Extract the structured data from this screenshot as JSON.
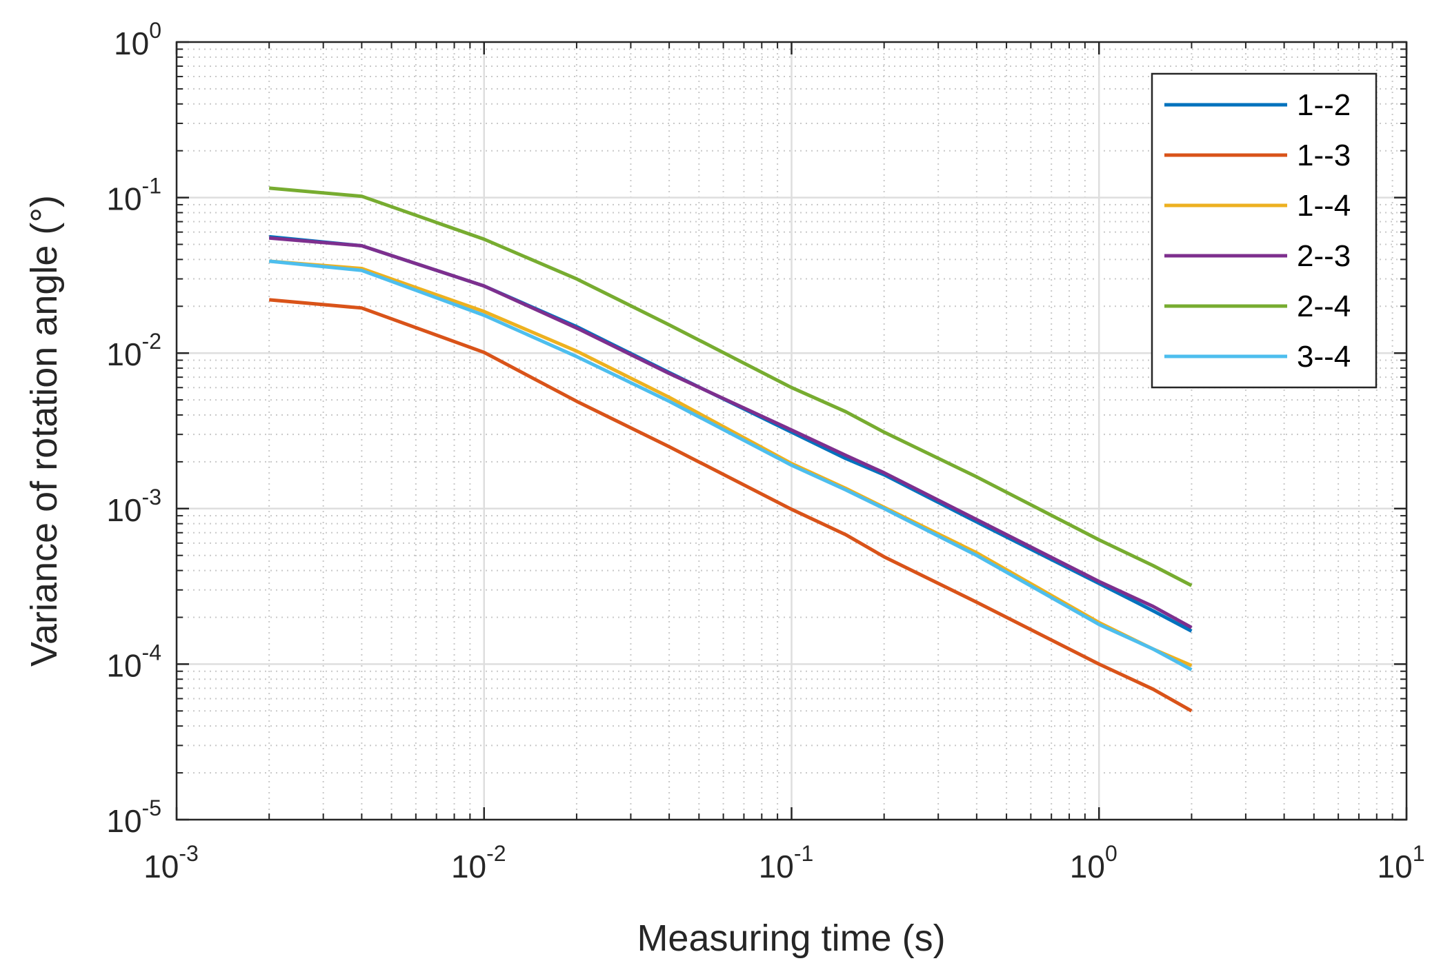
{
  "chart_data": {
    "type": "line",
    "title": "",
    "xlabel": "Measuring time (s)",
    "ylabel": "Variance of rotation angle (°)",
    "xscale": "log",
    "yscale": "log",
    "xlim": [
      0.001,
      10
    ],
    "ylim": [
      1e-05,
      1
    ],
    "grid": true,
    "minor_grid": true,
    "legend_position": "top-right",
    "x_ticks": [
      {
        "value": 0.001,
        "base": "10",
        "exp": "-3"
      },
      {
        "value": 0.01,
        "base": "10",
        "exp": "-2"
      },
      {
        "value": 0.1,
        "base": "10",
        "exp": "-1"
      },
      {
        "value": 1,
        "base": "10",
        "exp": "0"
      },
      {
        "value": 10,
        "base": "10",
        "exp": "1"
      }
    ],
    "y_ticks": [
      {
        "value": 1e-05,
        "base": "10",
        "exp": "-5"
      },
      {
        "value": 0.0001,
        "base": "10",
        "exp": "-4"
      },
      {
        "value": 0.001,
        "base": "10",
        "exp": "-3"
      },
      {
        "value": 0.01,
        "base": "10",
        "exp": "-2"
      },
      {
        "value": 0.1,
        "base": "10",
        "exp": "-1"
      },
      {
        "value": 1,
        "base": "10",
        "exp": "0"
      }
    ],
    "x": [
      0.002,
      0.004,
      0.01,
      0.02,
      0.04,
      0.1,
      0.15,
      0.2,
      0.4,
      1,
      1.5,
      2
    ],
    "series": [
      {
        "name": "1--2",
        "color": "#0072BD",
        "values": [
          0.056,
          0.049,
          0.027,
          0.0148,
          0.0075,
          0.0031,
          0.0021,
          0.00165,
          0.00082,
          0.00033,
          0.00022,
          0.000163
        ]
      },
      {
        "name": "1--3",
        "color": "#D95319",
        "values": [
          0.022,
          0.0195,
          0.0101,
          0.0049,
          0.0025,
          0.00099,
          0.00068,
          0.00049,
          0.00025,
          0.0001,
          6.9e-05,
          5e-05
        ]
      },
      {
        "name": "1--4",
        "color": "#EDB120",
        "values": [
          0.039,
          0.035,
          0.0185,
          0.0103,
          0.0052,
          0.00195,
          0.00135,
          0.00102,
          0.00052,
          0.000185,
          0.000125,
          9.8e-05
        ]
      },
      {
        "name": "2--3",
        "color": "#7E2F8E",
        "values": [
          0.055,
          0.049,
          0.027,
          0.0145,
          0.0074,
          0.0032,
          0.0022,
          0.0017,
          0.00085,
          0.00034,
          0.000235,
          0.000172
        ]
      },
      {
        "name": "2--4",
        "color": "#77AC30",
        "values": [
          0.115,
          0.102,
          0.054,
          0.03,
          0.0152,
          0.006,
          0.0042,
          0.0031,
          0.0016,
          0.00063,
          0.00043,
          0.00032
        ]
      },
      {
        "name": "3--4",
        "color": "#4DBEEE",
        "values": [
          0.039,
          0.034,
          0.0175,
          0.0095,
          0.0049,
          0.0019,
          0.00132,
          0.001,
          0.0005,
          0.00018,
          0.000125,
          9.2e-05
        ]
      }
    ]
  }
}
